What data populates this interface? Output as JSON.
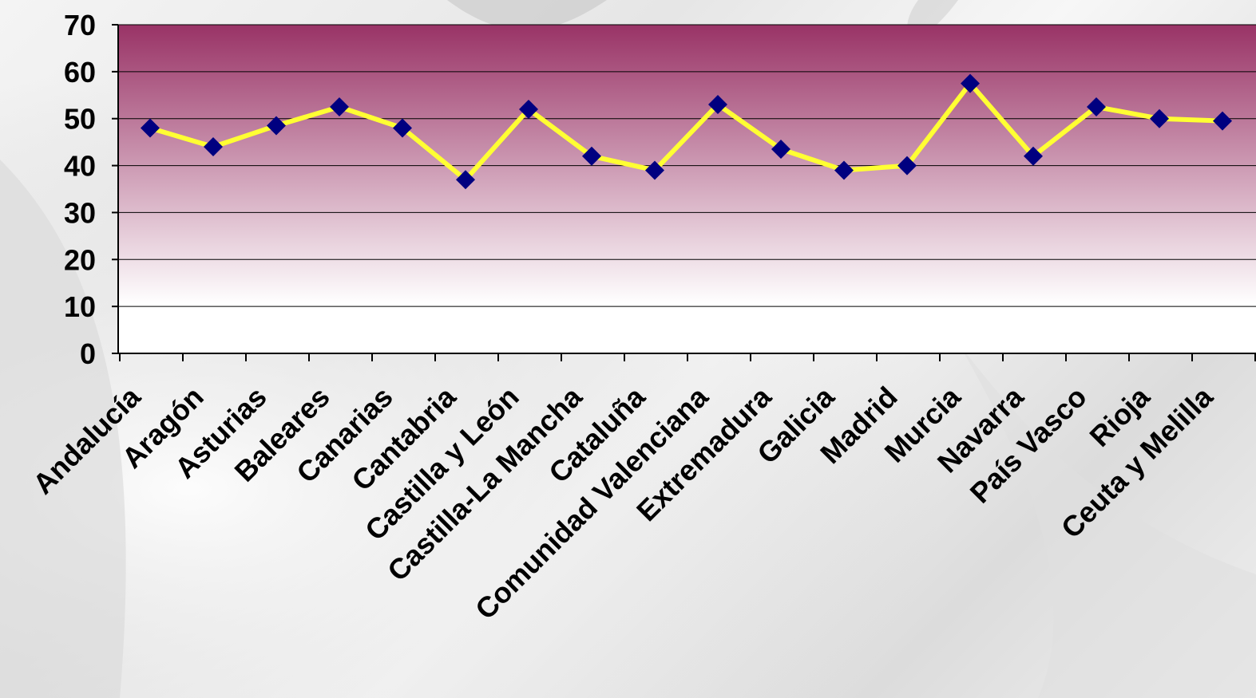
{
  "chart_data": {
    "type": "line",
    "title": "",
    "xlabel": "",
    "ylabel": "",
    "ylim": [
      0,
      70
    ],
    "yticks": [
      0,
      10,
      20,
      30,
      40,
      50,
      60,
      70
    ],
    "grid": true,
    "legend": "none",
    "categories": [
      "Andalucía",
      "Aragón",
      "Asturias",
      "Baleares",
      "Canarias",
      "Cantabria",
      "Castilla y León",
      "Castilla-La Mancha",
      "Cataluña",
      "Comunidad Valenciana",
      "Extremadura",
      "Galicia",
      "Madrid",
      "Murcia",
      "Navarra",
      "País Vasco",
      "Rioja",
      "Ceuta y Melilla"
    ],
    "series": [
      {
        "values": [
          48,
          44,
          48.5,
          52.5,
          48,
          37,
          52,
          42,
          39,
          53,
          43.5,
          39,
          40,
          57.5,
          42,
          52.5,
          50,
          49.5
        ]
      }
    ],
    "colors": {
      "line": "#ffff33",
      "marker": "#000080",
      "plot_top": "#993366",
      "plot_bottom": "#ffffff",
      "gridline": "#000000"
    }
  }
}
